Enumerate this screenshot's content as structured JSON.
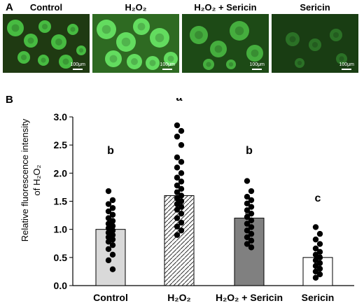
{
  "panel_a": {
    "letter": "A",
    "images": [
      {
        "title": "Control",
        "title_main": "Control",
        "title_suffix": "",
        "scale": "100μm",
        "fill": "#1f3a12",
        "cell": "#4fd24a",
        "brightness": "medium"
      },
      {
        "title": "H₂O₂",
        "title_main": "H₂O₂",
        "title_suffix": "",
        "scale": "100μm",
        "fill": "#2e6a22",
        "cell": "#6cf06a",
        "brightness": "high"
      },
      {
        "title": "H₂O₂ + Sericin",
        "title_main": "H₂O₂",
        "title_suffix": " + Sericin",
        "scale": "100μm",
        "fill": "#1d4a16",
        "cell": "#4cbf45",
        "brightness": "medium"
      },
      {
        "title": "Sericin",
        "title_main": "Sericin",
        "title_suffix": "",
        "scale": "100μm",
        "fill": "#193d13",
        "cell": "#2f7a2a",
        "brightness": "low"
      }
    ]
  },
  "panel_b": {
    "letter": "B"
  },
  "chart_data": {
    "type": "bar",
    "title": "",
    "ylabel": "Relative fluorescence intensity of H₂O₂",
    "ylabel_line1": "Relative fluorescence intensity",
    "ylabel_line2": "of H₂O₂",
    "xlabel": "",
    "ylim": [
      0,
      3.0
    ],
    "yticks": [
      "0.0",
      "0.5",
      "1.0",
      "1.5",
      "2.0",
      "2.5",
      "3.0"
    ],
    "categories": [
      "Control",
      "H₂O₂",
      "H₂O₂ + Sericin",
      "Sericin"
    ],
    "values": [
      1.0,
      1.6,
      1.2,
      0.5
    ],
    "errors": [
      0.06,
      0.1,
      0.08,
      0.04
    ],
    "significance": [
      "b",
      "a",
      "b",
      "c"
    ],
    "bar_styles": [
      {
        "fill": "#d9d9d9",
        "pattern": "none"
      },
      {
        "fill": "#ffffff",
        "pattern": "hatch"
      },
      {
        "fill": "#808080",
        "pattern": "none"
      },
      {
        "fill": "#ffffff",
        "pattern": "none"
      }
    ],
    "points": [
      [
        1.68,
        1.52,
        1.45,
        1.38,
        1.32,
        1.26,
        1.2,
        1.15,
        1.1,
        1.06,
        1.02,
        0.98,
        0.94,
        0.9,
        0.86,
        0.82,
        0.78,
        0.72,
        0.65,
        0.55,
        0.45,
        0.29
      ],
      [
        2.85,
        2.75,
        2.65,
        2.5,
        2.28,
        2.2,
        2.1,
        2.0,
        1.92,
        1.85,
        1.78,
        1.72,
        1.66,
        1.6,
        1.55,
        1.5,
        1.45,
        1.4,
        1.35,
        1.28,
        1.2,
        1.12,
        1.05,
        0.98,
        0.9
      ],
      [
        1.86,
        1.68,
        1.58,
        1.52,
        1.46,
        1.4,
        1.34,
        1.28,
        1.22,
        1.16,
        1.1,
        1.04,
        0.98,
        0.92,
        0.86,
        0.8,
        0.74,
        0.68
      ],
      [
        1.04,
        0.92,
        0.82,
        0.74,
        0.66,
        0.6,
        0.55,
        0.5,
        0.45,
        0.4,
        0.35,
        0.3,
        0.25,
        0.2,
        0.14
      ]
    ],
    "grid": false,
    "legend": "none"
  }
}
